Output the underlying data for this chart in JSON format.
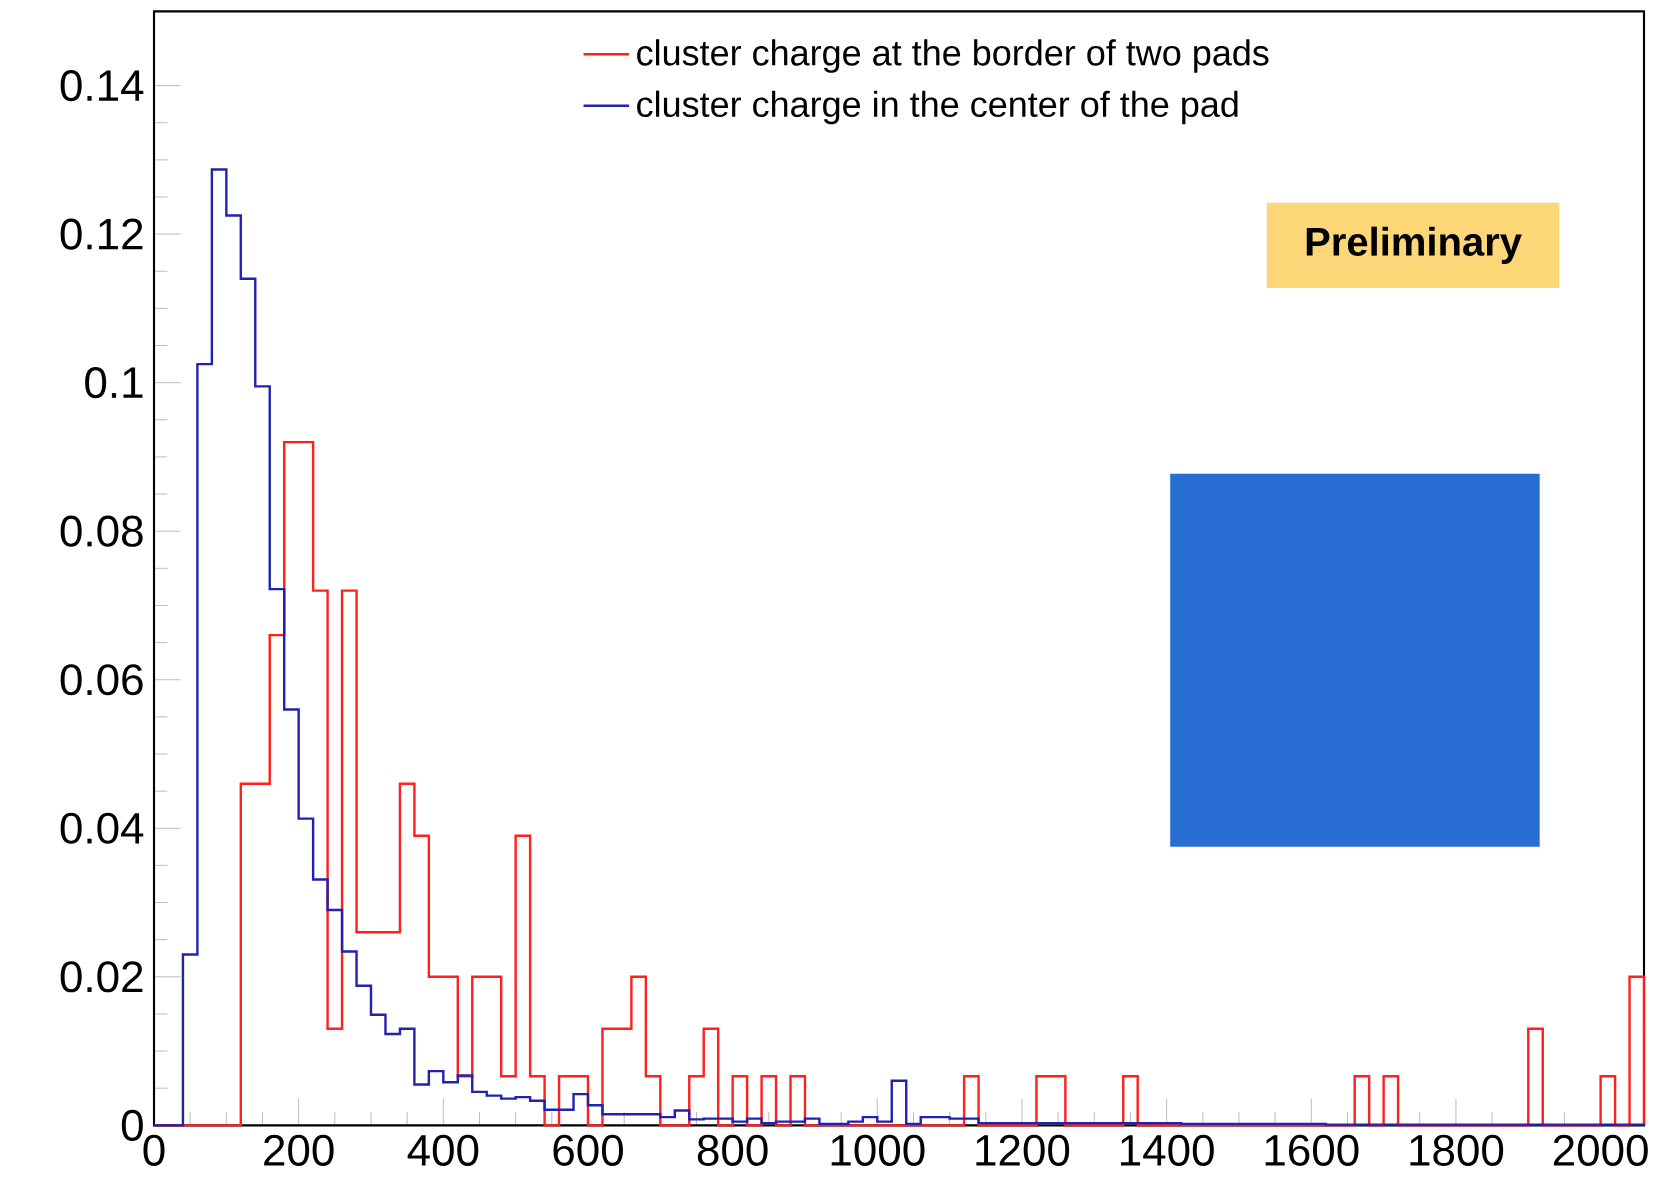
{
  "chart_data": {
    "type": "histogram",
    "bins": [
      0,
      20,
      40,
      60,
      80,
      100,
      120,
      140,
      160,
      180,
      200,
      220,
      240,
      260,
      280,
      300,
      320,
      340,
      360,
      380,
      400,
      420,
      440,
      460,
      480,
      500,
      520,
      540,
      560,
      580,
      600,
      620,
      640,
      660,
      680,
      700,
      720,
      740,
      760,
      780,
      800,
      820,
      840,
      860,
      880,
      900,
      920,
      940,
      960,
      980,
      1000,
      1020,
      1040,
      1060,
      1080,
      1100,
      1120,
      1140,
      1160,
      1180,
      1200,
      1220,
      1240,
      1260,
      1280,
      1300,
      1320,
      1340,
      1360,
      1380,
      1400,
      1420,
      1440,
      1460,
      1480,
      1500,
      1520,
      1540,
      1560,
      1580,
      1600,
      1620,
      1640,
      1660,
      1680,
      1700,
      1720,
      1740,
      1760,
      1780,
      1800,
      1820,
      1840,
      1860,
      1880,
      1900,
      1920,
      1940,
      1960,
      1980,
      2000,
      2020,
      2040,
      2060
    ],
    "series": [
      {
        "name": "cluster charge at the border of two pads",
        "color": "#ff2020",
        "values": [
          0,
          0,
          0,
          0,
          0,
          0,
          0.046,
          0.046,
          0.066,
          0.092,
          0.092,
          0.072,
          0.013,
          0.072,
          0.026,
          0.026,
          0.026,
          0.046,
          0.039,
          0.02,
          0.02,
          0.0066,
          0.02,
          0.02,
          0.0066,
          0.039,
          0.0066,
          0,
          0.0066,
          0.0066,
          0,
          0.013,
          0.013,
          0.02,
          0.0066,
          0,
          0,
          0.0066,
          0.013,
          0,
          0.0066,
          0,
          0.0066,
          0,
          0.0066,
          0,
          0,
          0,
          0,
          0,
          0,
          0,
          0,
          0,
          0,
          0,
          0.0066,
          0,
          0,
          0,
          0,
          0.0066,
          0.0066,
          0,
          0,
          0,
          0,
          0.0066,
          0,
          0,
          0,
          0,
          0,
          0,
          0,
          0,
          0,
          0,
          0,
          0,
          0,
          0,
          0,
          0.0066,
          0,
          0.0066,
          0,
          0,
          0,
          0,
          0,
          0,
          0,
          0,
          0,
          0.013,
          0,
          0,
          0,
          0,
          0.0066,
          0,
          0.02
        ]
      },
      {
        "name": "cluster charge in the center of the pad",
        "color": "#2222b0",
        "values": [
          0,
          0,
          0.023,
          0.1025,
          0.1287,
          0.1225,
          0.114,
          0.0995,
          0.0722,
          0.056,
          0.0413,
          0.0331,
          0.029,
          0.0234,
          0.0188,
          0.0149,
          0.0123,
          0.013,
          0.0055,
          0.0073,
          0.0058,
          0.0067,
          0.0045,
          0.004,
          0.0036,
          0.0038,
          0.0033,
          0.0021,
          0.0021,
          0.0042,
          0.0027,
          0.0015,
          0.0015,
          0.0015,
          0.0015,
          0.0011,
          0.002,
          0.0008,
          0.0009,
          0.0009,
          0.0005,
          0.0009,
          0.0003,
          0.0005,
          0.0005,
          0.0009,
          0.0002,
          0.0002,
          0.0005,
          0.0011,
          0.0005,
          0.006,
          0.0002,
          0.0011,
          0.0011,
          0.0009,
          0.0009,
          0.0003,
          0.0003,
          0.0003,
          0.0003,
          0.0003,
          0.0003,
          0.0003,
          0.0003,
          0.0003,
          0.0003,
          0.0003,
          0.0003,
          0.0003,
          0.0003,
          0.0002,
          0.0002,
          0.0002,
          0.0002,
          0.0002,
          0.0002,
          0.0002,
          0.0002,
          0.0002,
          0.0002,
          0.0001,
          0.0001,
          0.0001,
          0.0001,
          0.0001,
          0.0001,
          0.0001,
          0.0001,
          0.0001,
          0.0001,
          0.0001,
          0.0001,
          0.0001,
          0.0001,
          0.0001,
          0.0001,
          0.0001,
          0.0001,
          0.0001,
          0.0001,
          0.0001,
          0.0001
        ]
      }
    ],
    "xlim": [
      0,
      2060
    ],
    "ylim": [
      0,
      0.15
    ],
    "xticks": [
      0,
      200,
      400,
      600,
      800,
      1000,
      1200,
      1400,
      1600,
      1800,
      2000
    ],
    "yticks": [
      0,
      0.02,
      0.04,
      0.06,
      0.08,
      0.1,
      0.12,
      0.14
    ],
    "legend": "top",
    "annotations": [
      "Preliminary"
    ]
  }
}
